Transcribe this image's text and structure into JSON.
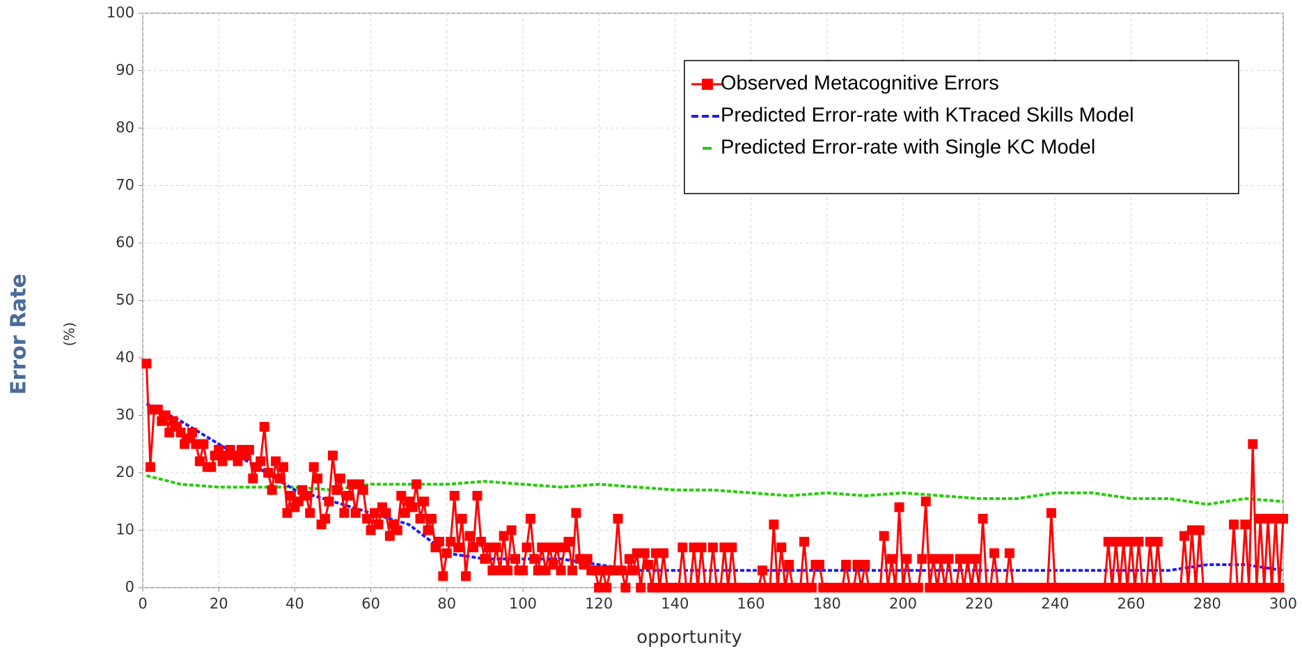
{
  "chart_data": {
    "type": "line",
    "x_label": "opportunity",
    "y_label": "Error Rate",
    "y_unit_label": "(%)",
    "xlim": [
      0,
      300
    ],
    "xticks": [
      0,
      20,
      40,
      60,
      80,
      100,
      120,
      140,
      160,
      180,
      200,
      220,
      240,
      260,
      280,
      300
    ],
    "ylim": [
      0,
      100
    ],
    "yticks": [
      0,
      10,
      20,
      30,
      40,
      50,
      60,
      70,
      80,
      90,
      100
    ],
    "grid": true,
    "legend": "upper right",
    "series": [
      {
        "name": "Observed Metacognitive Errors",
        "color": "#ff0000",
        "marker": "square",
        "x": [
          1,
          2,
          3,
          4,
          5,
          6,
          7,
          8,
          9,
          10,
          11,
          12,
          13,
          14,
          15,
          16,
          17,
          18,
          19,
          20,
          21,
          22,
          23,
          24,
          25,
          26,
          27,
          28,
          29,
          30,
          31,
          32,
          33,
          34,
          35,
          36,
          37,
          38,
          39,
          40,
          41,
          42,
          43,
          44,
          45,
          46,
          47,
          48,
          49,
          50,
          51,
          52,
          53,
          54,
          55,
          56,
          57,
          58,
          59,
          60,
          61,
          62,
          63,
          64,
          65,
          66,
          67,
          68,
          69,
          70,
          71,
          72,
          73,
          74,
          75,
          76,
          77,
          78,
          79,
          80,
          81,
          82,
          83,
          84,
          85,
          86,
          87,
          88,
          89,
          90,
          91,
          92,
          93,
          94,
          95,
          96,
          97,
          98,
          99,
          100,
          101,
          102,
          103,
          104,
          105,
          106,
          107,
          108,
          109,
          110,
          111,
          112,
          113,
          114,
          115,
          116,
          117,
          118,
          119,
          120,
          121,
          122,
          123,
          124,
          125,
          126,
          127,
          128,
          129,
          130,
          131,
          132,
          133,
          134,
          135,
          136,
          137,
          138,
          139,
          140,
          141,
          142,
          143,
          144,
          145,
          146,
          147,
          148,
          149,
          150,
          151,
          152,
          153,
          154,
          155,
          156,
          157,
          158,
          159,
          160,
          161,
          162,
          163,
          164,
          165,
          166,
          167,
          168,
          169,
          170,
          171,
          172,
          173,
          174,
          175,
          176,
          177,
          178,
          179,
          180,
          181,
          182,
          183,
          184,
          185,
          186,
          187,
          188,
          189,
          190,
          191,
          192,
          193,
          194,
          195,
          196,
          197,
          198,
          199,
          200,
          201,
          202,
          203,
          204,
          205,
          206,
          207,
          208,
          209,
          210,
          211,
          212,
          213,
          214,
          215,
          216,
          217,
          218,
          219,
          220,
          221,
          222,
          223,
          224,
          225,
          226,
          227,
          228,
          229,
          230,
          231,
          232,
          233,
          234,
          235,
          236,
          237,
          238,
          239,
          240,
          241,
          242,
          243,
          244,
          245,
          246,
          247,
          248,
          249,
          250,
          251,
          252,
          253,
          254,
          255,
          256,
          257,
          258,
          259,
          260,
          261,
          262,
          263,
          264,
          265,
          266,
          267,
          268,
          269,
          270,
          271,
          272,
          273,
          274,
          275,
          276,
          277,
          278,
          279,
          280,
          281,
          282,
          283,
          284,
          285,
          286,
          287,
          288,
          289,
          290,
          291,
          292,
          293,
          294,
          295,
          296,
          297,
          298,
          299,
          300
        ],
        "values": [
          39,
          21,
          31,
          31,
          29,
          30,
          27,
          29,
          28,
          27,
          25,
          26,
          27,
          25,
          22,
          25,
          21,
          21,
          23,
          24,
          22,
          23,
          24,
          23,
          22,
          24,
          23,
          24,
          19,
          21,
          22,
          28,
          20,
          17,
          22,
          19,
          21,
          13,
          16,
          14,
          15,
          17,
          16,
          13,
          21,
          19,
          11,
          12,
          15,
          23,
          17,
          19,
          13,
          16,
          18,
          13,
          18,
          17,
          12,
          10,
          13,
          11,
          14,
          13,
          9,
          11,
          10,
          16,
          13,
          15,
          14,
          18,
          12,
          15,
          10,
          12,
          7,
          8,
          2,
          6,
          8,
          16,
          7,
          12,
          2,
          9,
          7,
          16,
          8,
          5,
          7,
          3,
          7,
          3,
          9,
          3,
          10,
          5,
          3,
          3,
          7,
          12,
          5,
          3,
          7,
          3,
          7,
          4,
          7,
          3,
          7,
          8,
          3,
          13,
          5,
          4,
          5,
          3,
          3,
          0,
          3,
          0,
          3,
          3,
          12,
          3,
          0,
          5,
          3,
          6,
          0,
          6,
          4,
          0,
          6,
          0,
          6,
          0,
          0,
          0,
          0,
          7,
          0,
          0,
          7,
          0,
          7,
          0,
          0,
          7,
          0,
          0,
          7,
          0,
          7,
          0,
          0,
          0,
          0,
          0,
          0,
          0,
          3,
          0,
          0,
          11,
          0,
          7,
          0,
          4,
          0,
          0,
          0,
          8,
          0,
          0,
          4,
          4,
          0,
          0,
          0,
          0,
          0,
          0,
          4,
          0,
          0,
          4,
          0,
          4,
          0,
          0,
          0,
          0,
          9,
          0,
          5,
          0,
          14,
          0,
          5,
          0,
          0,
          0,
          5,
          15,
          0,
          5,
          0,
          5,
          0,
          5,
          0,
          0,
          5,
          0,
          5,
          0,
          5,
          0,
          12,
          0,
          0,
          6,
          0,
          0,
          0,
          6,
          0,
          0,
          0,
          0,
          0,
          0,
          0,
          0,
          0,
          0,
          13,
          0,
          0,
          0,
          0,
          0,
          0,
          0,
          0,
          0,
          0,
          0,
          0,
          0,
          0,
          8,
          0,
          8,
          0,
          8,
          0,
          8,
          0,
          8,
          0,
          0,
          8,
          0,
          8,
          0,
          0,
          0,
          0,
          0,
          0,
          9,
          0,
          10,
          0,
          10,
          0,
          0,
          0,
          0,
          0,
          0,
          0,
          0,
          11,
          0,
          0,
          11,
          0,
          25,
          0,
          12,
          0,
          12,
          0,
          12,
          0,
          12
        ]
      },
      {
        "name": "Predicted Error-rate with KTraced Skills Model",
        "color": "#1a1aff",
        "dashed": true,
        "x": [
          1,
          10,
          20,
          30,
          40,
          50,
          60,
          70,
          80,
          90,
          100,
          110,
          120,
          130,
          140,
          150,
          160,
          170,
          180,
          190,
          200,
          210,
          220,
          230,
          240,
          250,
          260,
          270,
          280,
          290,
          300
        ],
        "values": [
          32,
          29,
          25,
          21,
          17,
          15,
          13,
          11,
          6,
          5,
          5,
          5,
          4,
          3,
          3,
          3,
          3,
          3,
          3,
          3,
          3,
          3,
          3,
          3,
          3,
          3,
          3,
          3,
          4,
          4,
          3
        ]
      },
      {
        "name": "Predicted Error-rate with Single KC Model",
        "color": "#22cc00",
        "dashed": true,
        "x": [
          1,
          10,
          20,
          30,
          40,
          50,
          60,
          70,
          80,
          90,
          100,
          110,
          120,
          130,
          140,
          150,
          160,
          170,
          180,
          190,
          200,
          210,
          220,
          230,
          240,
          250,
          260,
          270,
          280,
          290,
          300
        ],
        "values": [
          19.5,
          18,
          17.5,
          17.5,
          17.5,
          17,
          18,
          18,
          18,
          18.5,
          18,
          17.5,
          18,
          17.5,
          17,
          17,
          16.5,
          16,
          16.5,
          16,
          16.5,
          16,
          15.5,
          15.5,
          16.5,
          16.5,
          15.5,
          15.5,
          14.5,
          15.5,
          15
        ]
      }
    ]
  }
}
